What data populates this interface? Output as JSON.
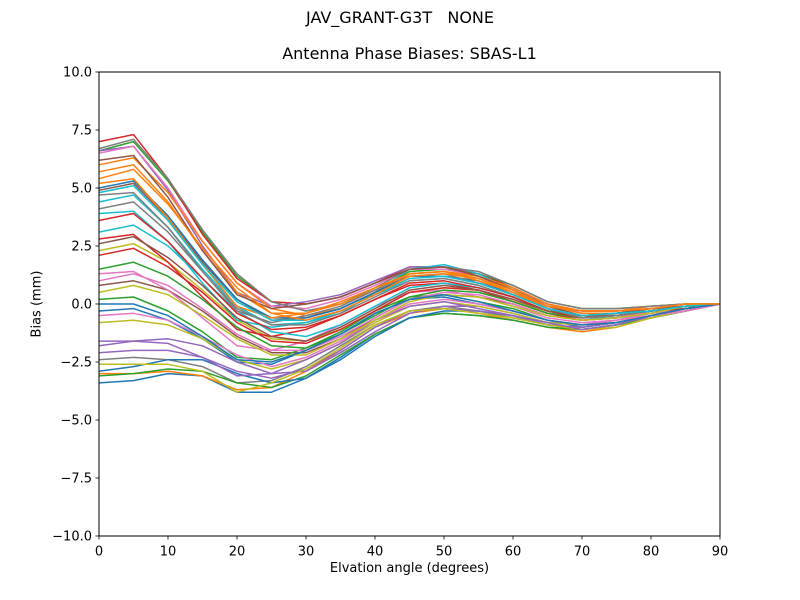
{
  "chart_data": {
    "type": "line",
    "suptitle": "JAV_GRANT-G3T   NONE",
    "title": "Antenna Phase Biases: SBAS-L1",
    "xlabel": "Elvation angle (degrees)",
    "ylabel": "Bias (mm)",
    "xlim": [
      0,
      90
    ],
    "ylim": [
      -10,
      10
    ],
    "grid": false,
    "legend": "none",
    "frame_color": "#000000",
    "background": "#ffffff",
    "xticks": [
      0,
      10,
      20,
      30,
      40,
      50,
      60,
      70,
      80,
      90
    ],
    "xtick_labels": [
      "0",
      "10",
      "20",
      "30",
      "40",
      "50",
      "60",
      "70",
      "80",
      "90"
    ],
    "yticks": [
      10.0,
      7.5,
      5.0,
      2.5,
      0.0,
      -2.5,
      -5.0,
      -7.5,
      -10.0
    ],
    "ytick_labels": [
      "10.0",
      "7.5",
      "5.0",
      "2.5",
      "0.0",
      "−2.5",
      "−5.0",
      "−7.5",
      "−10.0"
    ],
    "x": [
      0,
      5,
      10,
      15,
      20,
      25,
      30,
      35,
      40,
      45,
      50,
      55,
      60,
      65,
      70,
      75,
      80,
      85,
      90
    ],
    "series": [
      {
        "color": "#1f77b4",
        "values": [
          -3.4,
          -3.3,
          -3.0,
          -3.1,
          -3.8,
          -3.8,
          -3.2,
          -2.3,
          -1.3,
          -0.6,
          -0.4,
          -0.5,
          -0.7,
          -1.0,
          -1.1,
          -0.9,
          -0.6,
          -0.3,
          0.0
        ]
      },
      {
        "color": "#ff7f0e",
        "values": [
          -3.0,
          -3.0,
          -2.9,
          -3.1,
          -3.7,
          -3.6,
          -2.9,
          -2.0,
          -1.0,
          -0.4,
          -0.2,
          -0.4,
          -0.7,
          -1.0,
          -1.2,
          -1.0,
          -0.6,
          -0.3,
          0.0
        ]
      },
      {
        "color": "#2ca02c",
        "values": [
          6.6,
          7.0,
          5.3,
          3.1,
          1.2,
          0.1,
          -0.3,
          0.0,
          0.6,
          1.4,
          1.5,
          1.3,
          0.8,
          0.1,
          -0.2,
          -0.2,
          -0.1,
          0.0,
          0.0
        ]
      },
      {
        "color": "#d62728",
        "values": [
          7.0,
          7.3,
          5.4,
          3.0,
          1.1,
          0.1,
          0.0,
          0.3,
          0.9,
          1.6,
          1.6,
          1.3,
          0.7,
          0.0,
          -0.3,
          -0.3,
          -0.2,
          -0.1,
          0.0
        ]
      },
      {
        "color": "#9467bd",
        "values": [
          6.6,
          6.8,
          4.9,
          2.5,
          0.5,
          -0.1,
          0.1,
          0.4,
          1.0,
          1.6,
          1.6,
          1.2,
          0.6,
          0.0,
          -0.4,
          -0.4,
          -0.2,
          -0.1,
          0.0
        ]
      },
      {
        "color": "#8c564b",
        "values": [
          0.8,
          1.0,
          0.6,
          -0.3,
          -1.4,
          -2.1,
          -2.1,
          -1.5,
          -0.6,
          0.2,
          0.4,
          0.3,
          0.0,
          -0.5,
          -0.7,
          -0.6,
          -0.3,
          -0.1,
          0.0
        ]
      },
      {
        "color": "#e377c2",
        "values": [
          6.5,
          6.8,
          5.0,
          2.7,
          0.9,
          -0.1,
          -0.2,
          0.2,
          0.8,
          1.5,
          1.5,
          1.2,
          0.6,
          -0.1,
          -0.3,
          -0.3,
          -0.2,
          -0.1,
          0.0
        ]
      },
      {
        "color": "#7f7f7f",
        "values": [
          -2.4,
          -2.3,
          -2.4,
          -2.7,
          -3.4,
          -3.3,
          -2.7,
          -1.8,
          -0.9,
          -0.3,
          -0.1,
          -0.3,
          -0.6,
          -0.9,
          -1.1,
          -0.9,
          -0.6,
          -0.3,
          0.0
        ]
      },
      {
        "color": "#bcbd22",
        "values": [
          2.3,
          2.6,
          1.8,
          0.6,
          -0.7,
          -1.5,
          -1.6,
          -1.1,
          -0.3,
          0.5,
          0.7,
          0.6,
          0.2,
          -0.4,
          -0.6,
          -0.5,
          -0.3,
          -0.1,
          0.0
        ]
      },
      {
        "color": "#17becf",
        "values": [
          4.4,
          4.7,
          3.3,
          1.5,
          -0.1,
          -0.9,
          -0.8,
          -0.4,
          0.5,
          1.5,
          1.7,
          1.3,
          0.6,
          -0.2,
          -0.5,
          -0.5,
          -0.3,
          -0.2,
          0.0
        ]
      },
      {
        "color": "#1f77b4",
        "values": [
          -0.3,
          -0.2,
          -0.7,
          -1.5,
          -2.5,
          -2.6,
          -2.0,
          -1.3,
          -0.4,
          0.2,
          0.3,
          0.0,
          -0.3,
          -0.7,
          -1.0,
          -0.8,
          -0.5,
          -0.2,
          0.0
        ]
      },
      {
        "color": "#ff7f0e",
        "values": [
          6.0,
          6.3,
          4.8,
          2.7,
          0.9,
          -0.2,
          -0.5,
          -0.2,
          0.5,
          1.3,
          1.4,
          1.2,
          0.7,
          0.0,
          -0.3,
          -0.3,
          -0.1,
          0.0,
          0.0
        ]
      },
      {
        "color": "#2ca02c",
        "values": [
          -3.1,
          -3.0,
          -2.8,
          -2.9,
          -3.4,
          -3.6,
          -3.1,
          -2.2,
          -1.3,
          -0.6,
          -0.4,
          -0.5,
          -0.7,
          -1.0,
          -1.1,
          -0.9,
          -0.6,
          -0.3,
          0.0
        ]
      },
      {
        "color": "#d62728",
        "values": [
          2.8,
          3.0,
          1.8,
          0.3,
          -1.1,
          -1.4,
          -1.1,
          -0.5,
          0.2,
          0.8,
          0.9,
          0.6,
          0.1,
          -0.4,
          -0.7,
          -0.6,
          -0.4,
          -0.2,
          0.0
        ]
      },
      {
        "color": "#9467bd",
        "values": [
          -1.8,
          -1.6,
          -1.5,
          -1.8,
          -2.5,
          -3.0,
          -2.9,
          -2.1,
          -1.2,
          -0.4,
          -0.1,
          -0.1,
          -0.4,
          -0.8,
          -0.9,
          -0.7,
          -0.4,
          -0.2,
          0.0
        ]
      },
      {
        "color": "#8c564b",
        "values": [
          4.9,
          5.2,
          3.7,
          1.8,
          0.2,
          -0.7,
          -0.6,
          -0.2,
          0.5,
          1.2,
          1.2,
          0.9,
          0.4,
          -0.2,
          -0.5,
          -0.4,
          -0.3,
          -0.1,
          0.0
        ]
      },
      {
        "color": "#e377c2",
        "values": [
          1.3,
          1.4,
          0.6,
          -0.6,
          -1.8,
          -2.0,
          -1.6,
          -0.9,
          -0.1,
          0.5,
          0.6,
          0.3,
          -0.1,
          -0.6,
          -0.8,
          -0.7,
          -0.4,
          -0.2,
          0.0
        ]
      },
      {
        "color": "#7f7f7f",
        "values": [
          6.7,
          7.1,
          5.4,
          3.2,
          1.3,
          0.1,
          -0.3,
          0.0,
          0.7,
          1.5,
          1.6,
          1.4,
          0.8,
          0.1,
          -0.2,
          -0.2,
          -0.1,
          0.0,
          0.0
        ]
      },
      {
        "color": "#bcbd22",
        "values": [
          -0.8,
          -0.7,
          -0.9,
          -1.5,
          -2.4,
          -2.8,
          -2.4,
          -1.7,
          -0.8,
          -0.1,
          0.1,
          -0.1,
          -0.4,
          -0.8,
          -0.9,
          -0.8,
          -0.5,
          -0.3,
          0.0
        ]
      },
      {
        "color": "#17becf",
        "values": [
          3.9,
          4.0,
          2.7,
          0.9,
          -0.7,
          -1.0,
          -0.8,
          -0.3,
          0.4,
          1.0,
          1.1,
          0.8,
          0.3,
          -0.3,
          -0.6,
          -0.6,
          -0.3,
          -0.2,
          0.0
        ]
      },
      {
        "color": "#1f77b4",
        "values": [
          -2.9,
          -2.7,
          -2.4,
          -2.4,
          -3.0,
          -3.4,
          -3.2,
          -2.4,
          -1.4,
          -0.6,
          -0.3,
          -0.3,
          -0.5,
          -0.9,
          -1.0,
          -0.8,
          -0.5,
          -0.2,
          0.0
        ]
      },
      {
        "color": "#ff7f0e",
        "values": [
          5.7,
          6.0,
          4.4,
          2.3,
          0.5,
          -0.4,
          -0.4,
          0.0,
          0.6,
          1.3,
          1.4,
          1.1,
          0.5,
          -0.1,
          -0.4,
          -0.4,
          -0.3,
          -0.1,
          0.0
        ]
      },
      {
        "color": "#2ca02c",
        "values": [
          0.2,
          0.3,
          -0.3,
          -1.2,
          -2.3,
          -2.4,
          -1.9,
          -1.2,
          -0.3,
          0.3,
          0.4,
          0.1,
          -0.2,
          -0.7,
          -0.9,
          -0.8,
          -0.5,
          -0.2,
          0.0
        ]
      },
      {
        "color": "#d62728",
        "values": [
          2.1,
          2.4,
          1.6,
          0.5,
          -0.8,
          -1.6,
          -1.7,
          -1.1,
          -0.3,
          0.5,
          0.7,
          0.6,
          0.1,
          -0.4,
          -0.6,
          -0.5,
          -0.3,
          -0.1,
          0.0
        ]
      },
      {
        "color": "#9467bd",
        "values": [
          -2.1,
          -2.0,
          -2.0,
          -2.3,
          -2.9,
          -3.2,
          -2.8,
          -2.0,
          -1.0,
          -0.3,
          -0.2,
          -0.3,
          -0.5,
          -0.9,
          -1.0,
          -0.8,
          -0.6,
          -0.3,
          0.0
        ]
      },
      {
        "color": "#8c564b",
        "values": [
          6.2,
          6.4,
          4.6,
          2.3,
          0.4,
          -0.2,
          0.0,
          0.3,
          0.9,
          1.5,
          1.6,
          1.2,
          0.6,
          -0.1,
          -0.5,
          -0.4,
          -0.2,
          -0.1,
          0.0
        ]
      },
      {
        "color": "#e377c2",
        "values": [
          1.0,
          1.3,
          0.8,
          -0.2,
          -1.3,
          -2.0,
          -2.0,
          -1.4,
          -0.6,
          0.2,
          0.5,
          0.4,
          0.0,
          -0.5,
          -0.7,
          -0.6,
          -0.3,
          -0.1,
          0.0
        ]
      },
      {
        "color": "#7f7f7f",
        "values": [
          4.1,
          4.4,
          3.1,
          1.4,
          -0.2,
          -0.9,
          -0.9,
          -0.4,
          0.3,
          1.0,
          1.1,
          0.8,
          0.3,
          -0.3,
          -0.5,
          -0.5,
          -0.3,
          -0.2,
          0.0
        ]
      },
      {
        "color": "#bcbd22",
        "values": [
          -2.6,
          -2.6,
          -2.6,
          -2.9,
          -3.8,
          -3.4,
          -2.8,
          -1.9,
          -0.9,
          -0.3,
          -0.2,
          -0.4,
          -0.6,
          -0.9,
          -1.1,
          -1.0,
          -0.6,
          -0.3,
          0.0
        ]
      },
      {
        "color": "#17becf",
        "values": [
          3.1,
          3.4,
          2.5,
          1.1,
          -0.3,
          -1.2,
          -1.4,
          -0.9,
          -0.1,
          0.7,
          0.9,
          0.7,
          0.3,
          -0.3,
          -0.5,
          -0.4,
          -0.3,
          -0.1,
          0.0
        ]
      },
      {
        "color": "#1f77b4",
        "values": [
          5.0,
          5.3,
          3.8,
          1.9,
          0.2,
          -0.6,
          -0.6,
          -0.2,
          0.5,
          1.2,
          1.2,
          1.0,
          0.4,
          -0.2,
          -0.5,
          -0.4,
          -0.3,
          -0.1,
          0.0
        ]
      },
      {
        "color": "#ff7f0e",
        "values": [
          5.2,
          5.4,
          3.7,
          1.7,
          -0.1,
          -0.6,
          -0.4,
          0.1,
          0.7,
          1.3,
          1.4,
          1.0,
          0.5,
          -0.2,
          -0.5,
          -0.5,
          -0.3,
          -0.1,
          0.0
        ]
      },
      {
        "color": "#2ca02c",
        "values": [
          1.5,
          1.8,
          1.2,
          0.2,
          -1.0,
          -1.8,
          -1.9,
          -1.3,
          -0.5,
          0.3,
          0.6,
          0.5,
          0.1,
          -0.4,
          -0.6,
          -0.5,
          -0.3,
          -0.1,
          0.0
        ]
      },
      {
        "color": "#d62728",
        "values": [
          3.6,
          3.9,
          2.7,
          1.1,
          -0.4,
          -1.1,
          -1.0,
          -0.5,
          0.2,
          0.9,
          1.0,
          0.7,
          0.3,
          -0.3,
          -0.6,
          -0.5,
          -0.3,
          -0.2,
          0.0
        ]
      },
      {
        "color": "#9467bd",
        "values": [
          -1.6,
          -1.6,
          -1.7,
          -2.3,
          -3.1,
          -3.0,
          -2.4,
          -1.7,
          -0.7,
          -0.1,
          0.1,
          -0.2,
          -0.5,
          -0.8,
          -1.1,
          -0.9,
          -0.5,
          -0.3,
          0.0
        ]
      },
      {
        "color": "#8c564b",
        "values": [
          2.6,
          2.9,
          2.0,
          0.8,
          -0.6,
          -1.4,
          -1.6,
          -1.0,
          -0.2,
          0.6,
          0.8,
          0.6,
          0.2,
          -0.3,
          -0.5,
          -0.5,
          -0.3,
          -0.1,
          0.0
        ]
      },
      {
        "color": "#e377c2",
        "values": [
          -0.5,
          -0.4,
          -0.7,
          -1.4,
          -2.2,
          -2.7,
          -2.3,
          -1.6,
          -0.7,
          0.0,
          0.2,
          0.0,
          -0.3,
          -0.7,
          -0.9,
          -0.7,
          -0.5,
          -0.3,
          0.0
        ]
      },
      {
        "color": "#7f7f7f",
        "values": [
          4.7,
          4.8,
          3.3,
          1.4,
          -0.3,
          -0.8,
          -0.5,
          -0.1,
          0.6,
          1.2,
          1.3,
          0.9,
          0.4,
          -0.2,
          -0.6,
          -0.5,
          -0.3,
          -0.1,
          0.0
        ]
      },
      {
        "color": "#bcbd22",
        "values": [
          0.5,
          0.8,
          0.4,
          -0.5,
          -1.5,
          -2.2,
          -2.2,
          -1.5,
          -0.7,
          0.1,
          0.4,
          0.3,
          -0.1,
          -0.5,
          -0.7,
          -0.6,
          -0.4,
          -0.1,
          0.0
        ]
      },
      {
        "color": "#17becf",
        "values": [
          4.8,
          5.1,
          3.6,
          1.7,
          0.1,
          -0.7,
          -0.7,
          -0.3,
          0.4,
          1.1,
          1.2,
          0.9,
          0.4,
          -0.2,
          -0.5,
          -0.4,
          -0.3,
          -0.1,
          0.0
        ]
      },
      {
        "color": "#1f77b4",
        "values": [
          0.0,
          0.0,
          -0.5,
          -1.4,
          -2.4,
          -2.5,
          -2.0,
          -1.3,
          -0.4,
          0.2,
          0.4,
          0.1,
          -0.3,
          -0.7,
          -0.9,
          -0.8,
          -0.5,
          -0.2,
          0.0
        ]
      },
      {
        "color": "#ff7f0e",
        "values": [
          5.4,
          5.8,
          4.3,
          2.4,
          0.7,
          -0.4,
          -0.7,
          -0.3,
          0.4,
          1.2,
          1.3,
          1.1,
          0.6,
          -0.1,
          -0.3,
          -0.3,
          -0.2,
          0.0,
          0.0
        ]
      }
    ]
  }
}
